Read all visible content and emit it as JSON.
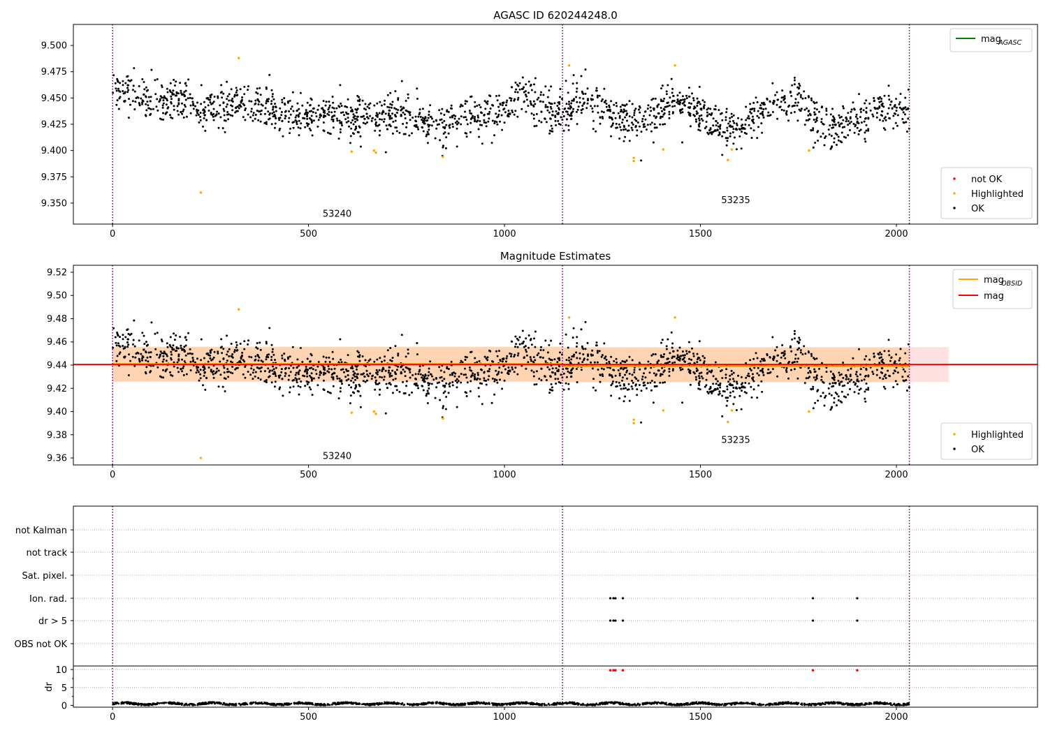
{
  "chart_data": [
    {
      "type": "scatter",
      "title": "AGASC ID 620244248.0",
      "xlim": [
        -100,
        2360
      ],
      "ylim": [
        9.33,
        9.52
      ],
      "x_ticks": [
        0,
        500,
        1000,
        1500,
        2000
      ],
      "y_ticks": [
        9.35,
        9.375,
        9.4,
        9.425,
        9.45,
        9.475,
        9.5
      ],
      "y_tick_labels": [
        "9.350",
        "9.375",
        "9.400",
        "9.425",
        "9.450",
        "9.475",
        "9.500"
      ],
      "vlines": [
        0,
        1148,
        2033
      ],
      "obsid_labels": [
        {
          "text": "53240",
          "x": 573,
          "y": 9.337
        },
        {
          "text": "53235",
          "x": 1590,
          "y": 9.35
        }
      ],
      "legend_top": [
        {
          "label": "mag",
          "sub": "AGASC",
          "color": "#008000"
        }
      ],
      "legend_bottom": [
        {
          "label": "not OK",
          "color": "#ff0000"
        },
        {
          "label": "Highlighted",
          "color": "#ffa500"
        },
        {
          "label": "OK",
          "color": "#000000"
        }
      ],
      "series": [
        {
          "name": "OK",
          "color": "#000000",
          "x_range": [
            0,
            2033
          ],
          "count": 1900,
          "model": "mag_noise"
        },
        {
          "name": "Highlighted",
          "color": "#ffa500",
          "points": [
            [
              225,
              9.36
            ],
            [
              322,
              9.488
            ],
            [
              610,
              9.399
            ],
            [
              667,
              9.4
            ],
            [
              672,
              9.398
            ],
            [
              843,
              9.394
            ],
            [
              1165,
              9.481
            ],
            [
              1330,
              9.393
            ],
            [
              1330,
              9.39
            ],
            [
              1405,
              9.401
            ],
            [
              1435,
              9.481
            ],
            [
              1570,
              9.391
            ],
            [
              1580,
              9.401
            ],
            [
              1777,
              9.4
            ]
          ]
        }
      ]
    },
    {
      "type": "scatter",
      "title": "Magnitude Estimates",
      "xlim": [
        -100,
        2360
      ],
      "ylim": [
        9.354,
        9.526
      ],
      "x_ticks": [
        0,
        500,
        1000,
        1500,
        2000
      ],
      "y_ticks": [
        9.36,
        9.38,
        9.4,
        9.42,
        9.44,
        9.46,
        9.48,
        9.5,
        9.52
      ],
      "y_tick_labels": [
        "9.36",
        "9.38",
        "9.40",
        "9.42",
        "9.44",
        "9.46",
        "9.48",
        "9.50",
        "9.52"
      ],
      "vlines": [
        0,
        1148,
        2033
      ],
      "obsid_labels": [
        {
          "text": "53240",
          "x": 573,
          "y": 9.359
        },
        {
          "text": "53235",
          "x": 1590,
          "y": 9.373
        }
      ],
      "legend_top": [
        {
          "label": "mag",
          "sub": "OBSID",
          "color": "#ffa500"
        },
        {
          "label": "mag",
          "sub": "",
          "color": "#ff0000"
        }
      ],
      "legend_bottom": [
        {
          "label": "Highlighted",
          "color": "#ffa500"
        },
        {
          "label": "OK",
          "color": "#000000"
        }
      ],
      "mag_line": {
        "value": 9.4405,
        "x": [
          -100,
          2360
        ],
        "band": [
          9.4255,
          9.4555
        ],
        "band_x": [
          0,
          2133
        ],
        "color": "#ff0000"
      },
      "mag_obsid": [
        {
          "x": [
            0,
            1148
          ],
          "value": 9.441,
          "band": [
            9.426,
            9.456
          ]
        },
        {
          "x": [
            1148,
            2033
          ],
          "value": 9.439,
          "band": [
            9.425,
            9.455
          ]
        }
      ],
      "series": [
        {
          "name": "OK",
          "color": "#000000",
          "x_range": [
            0,
            2033
          ],
          "count": 1900,
          "model": "mag_noise"
        },
        {
          "name": "Highlighted",
          "color": "#ffa500",
          "points": [
            [
              225,
              9.36
            ],
            [
              322,
              9.488
            ],
            [
              610,
              9.399
            ],
            [
              667,
              9.4
            ],
            [
              672,
              9.398
            ],
            [
              843,
              9.394
            ],
            [
              1165,
              9.481
            ],
            [
              1330,
              9.393
            ],
            [
              1330,
              9.39
            ],
            [
              1405,
              9.401
            ],
            [
              1435,
              9.481
            ],
            [
              1570,
              9.391
            ],
            [
              1580,
              9.401
            ],
            [
              1777,
              9.4
            ]
          ]
        }
      ]
    },
    {
      "type": "scatter",
      "title": "",
      "xlim": [
        -100,
        2360
      ],
      "x_ticks": [
        0,
        500,
        1000,
        1500,
        2000
      ],
      "vlines": [
        0,
        1148,
        2033
      ],
      "flags": {
        "categories": [
          "not Kalman",
          "not track",
          "Sat. pixel.",
          "Ion. rad.",
          "dr > 5",
          "OBS not OK"
        ],
        "points": [
          {
            "category": "Ion. rad.",
            "x": [
              1270,
              1278,
              1283,
              1302,
              1787,
              1900
            ]
          },
          {
            "category": "dr > 5",
            "x": [
              1270,
              1278,
              1283,
              1302,
              1787,
              1900
            ]
          }
        ],
        "color": "#000000"
      },
      "dr": {
        "ylabel": "dr",
        "ylim": [
          -0.5,
          11
        ],
        "y_ticks": [
          0,
          5,
          10
        ],
        "y_tick_labels": [
          "0",
          "5",
          "10"
        ],
        "series_color": "#000000",
        "x_range": [
          0,
          2033
        ],
        "typical_range": [
          0.0,
          1.3
        ],
        "outliers": {
          "color": "#ff0000",
          "y": 9.8,
          "x": [
            1270,
            1278,
            1283,
            1302,
            1787,
            1900
          ]
        }
      }
    }
  ]
}
